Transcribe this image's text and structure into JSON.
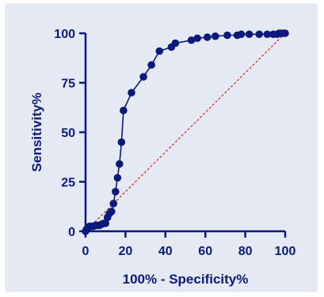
{
  "colors": {
    "series": "#0b1a7a",
    "reference": "#e8231f",
    "axis": "#0b1a7a",
    "text": "#0b1a7a",
    "panel": "#e4e9f3"
  },
  "chart_data": {
    "type": "line",
    "title": "",
    "xlabel": "100% - Specificity%",
    "ylabel": "Sensitivity%",
    "xlim": [
      0,
      100
    ],
    "ylim": [
      0,
      100
    ],
    "xticks": [
      "0",
      "20",
      "40",
      "60",
      "80",
      "100"
    ],
    "yticks": [
      "0",
      "25",
      "50",
      "75",
      "100"
    ],
    "grid": false,
    "legend": "none",
    "series": [
      {
        "style": "line-with-markers",
        "x": [
          0,
          0.5,
          1,
          1.5,
          2,
          3,
          4,
          5,
          6,
          7,
          8,
          9,
          10,
          11,
          12,
          13,
          14,
          15,
          16,
          17,
          18,
          19,
          23,
          29,
          33,
          37,
          43,
          45,
          53,
          56,
          61,
          65,
          71,
          76,
          78,
          82,
          87,
          91,
          94,
          96,
          97,
          98,
          99,
          100
        ],
        "y": [
          0,
          1,
          1.5,
          2,
          2.5,
          2.5,
          2.5,
          3,
          3,
          3,
          3.5,
          4,
          4,
          7,
          9,
          10,
          14,
          20,
          27,
          34,
          45,
          61,
          70,
          78,
          84,
          91,
          93,
          95,
          96.5,
          97.5,
          98,
          98.5,
          99,
          99,
          99.5,
          99.5,
          99.5,
          99.5,
          99.5,
          99.5,
          100,
          100,
          100,
          100
        ]
      },
      {
        "style": "dashed-reference",
        "x": [
          0,
          100
        ],
        "y": [
          0,
          100
        ]
      }
    ]
  }
}
